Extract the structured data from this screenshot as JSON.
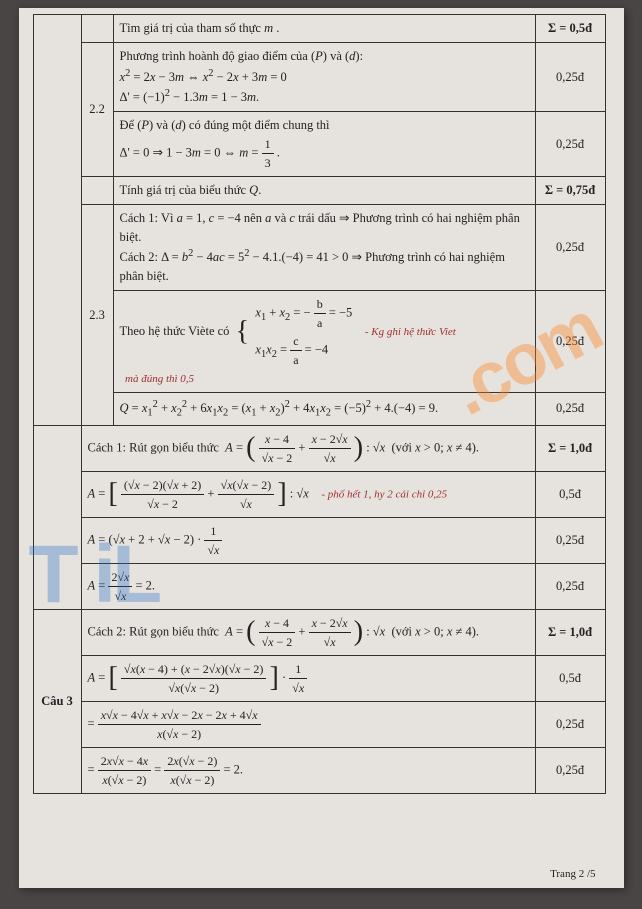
{
  "footer": "Trang 2 /5",
  "rows": [
    {
      "b": "",
      "c": "Tìm giá trị của tham số thực <span class='ital'>m</span> .",
      "d": "Σ = 0,5đ"
    },
    {
      "b": "2.2",
      "c": "Phương trình hoành độ giao điểm của (<span class='ital'>P</span>) và (<span class='ital'>d</span>):<br><span class='ital'>x</span><sup>2</sup> = 2<span class='ital'>x</span> − 3<span class='ital'>m</span> ⇔ <span class='ital'>x</span><sup>2</sup> − 2<span class='ital'>x</span> + 3<span class='ital'>m</span> = 0<br>Δ' = (−1)<sup>2</sup> − 1.3<span class='ital'>m</span> = 1 − 3<span class='ital'>m</span>.",
      "d": "0,25đ"
    },
    {
      "b": "",
      "c": "Để (<span class='ital'>P</span>) và (<span class='ital'>d</span>) có đúng một điểm chung thì<br>Δ' = 0 ⇒ 1 − 3<span class='ital'>m</span> = 0 ⇔ <span class='ital'>m</span> = <span class='frac'><span class='num'>1</span><span class='den'>3</span></span> .",
      "d": "0,25đ"
    },
    {
      "b": "",
      "c": "Tính giá trị của biểu thức <span class='ital'>Q</span>.",
      "d": "Σ = 0,75đ"
    },
    {
      "b": "2.3",
      "c": "Cách 1: Vì <span class='ital'>a</span> = 1, <span class='ital'>c</span> = −4 nên <span class='ital'>a</span> và <span class='ital'>c</span> trái dấu ⇒ Phương trình có hai nghiệm phân biệt.<br>Cách 2: Δ = <span class='ital'>b</span><sup>2</sup> − 4<span class='ital'>ac</span> = 5<sup>2</sup> − 4.1.(−4) = 41 > 0 ⇒ Phương trình có hai nghiệm phân biệt.",
      "d": "0,25đ"
    },
    {
      "b": "",
      "c": "Theo hệ thức Viète có &nbsp;<span class='bigbr'>{</span>&nbsp; <span style='display:inline-block;vertical-align:middle'><span class='ital'>x</span><sub>1</sub> + <span class='ital'>x</span><sub>2</sub> = − <span class='frac'><span class='num'>b</span><span class='den'>a</span></span> = −5<br><span class='ital'>x</span><sub>1</sub><span class='ital'>x</span><sub>2</sub> = <span class='frac'><span class='num'>c</span><span class='den'>a</span></span> = −4</span> &nbsp;&nbsp; <span class='annot'>- Kg ghi hệ thức Viet<br>&nbsp;&nbsp;mà đúng thì 0,5</span>",
      "d": "0,25đ"
    },
    {
      "b": "",
      "c": "<span class='ital'>Q</span> = <span class='ital'>x</span><sub>1</sub><sup>2</sup> + <span class='ital'>x</span><sub>2</sub><sup>2</sup> + 6<span class='ital'>x</span><sub>1</sub><span class='ital'>x</span><sub>2</sub> = (<span class='ital'>x</span><sub>1</sub> + <span class='ital'>x</span><sub>2</sub>)<sup>2</sup> + 4<span class='ital'>x</span><sub>1</sub><span class='ital'>x</span><sub>2</sub> = (−5)<sup>2</sup> + 4.(−4) = 9.",
      "d": "0,25đ"
    },
    {
      "a": "",
      "c": "Cách 1: Rút gọn biểu thức &nbsp;<span class='ital'>A</span> = <span class='bigbr'>(</span> <span class='frac'><span class='num'><span class='ital'>x</span> − 4</span><span class='den'>√<span class='ital'>x</span> − 2</span></span> + <span class='frac'><span class='num'><span class='ital'>x</span> − 2√<span class='ital'>x</span></span><span class='den'>√<span class='ital'>x</span></span></span> <span class='bigbr'>)</span> : √<span class='ital'>x</span> &nbsp;(với <span class='ital'>x</span> > 0; <span class='ital'>x</span> ≠ 4).",
      "d": "Σ = 1,0đ"
    },
    {
      "c": "<span class='ital'>A</span> = <span class='bigbr'>[</span> <span class='frac'><span class='num'>(√<span class='ital'>x</span> − 2)(√<span class='ital'>x</span> + 2)</span><span class='den'>√<span class='ital'>x</span> − 2</span></span> + <span class='frac'><span class='num'>√<span class='ital'>x</span>(√<span class='ital'>x</span> − 2)</span><span class='den'>√<span class='ital'>x</span></span></span> <span class='bigbr'>]</span> : √<span class='ital'>x</span> &nbsp;&nbsp; <span class='annot'>- phố hết 1, hy 2 cái chỉ 0,25</span>",
      "d": "0,5đ"
    },
    {
      "c": "<span class='ital'>A</span> = (√<span class='ital'>x</span> + 2 + √<span class='ital'>x</span> − 2) · <span class='frac'><span class='num'>1</span><span class='den'>√<span class='ital'>x</span></span></span>",
      "d": "0,25đ"
    },
    {
      "c": "<span class='ital'>A</span> = <span class='frac'><span class='num'>2√<span class='ital'>x</span></span><span class='den'>√<span class='ital'>x</span></span></span> = 2.",
      "d": "0,25đ"
    },
    {
      "a": "Câu 3",
      "c": "Cách 2: Rút gọn biểu thức &nbsp;<span class='ital'>A</span> = <span class='bigbr'>(</span> <span class='frac'><span class='num'><span class='ital'>x</span> − 4</span><span class='den'>√<span class='ital'>x</span> − 2</span></span> + <span class='frac'><span class='num'><span class='ital'>x</span> − 2√<span class='ital'>x</span></span><span class='den'>√<span class='ital'>x</span></span></span> <span class='bigbr'>)</span> : √<span class='ital'>x</span> &nbsp;(với <span class='ital'>x</span> > 0; <span class='ital'>x</span> ≠ 4).",
      "d": "Σ = 1,0đ"
    },
    {
      "c": "<span class='ital'>A</span> = <span class='bigbr'>[</span> <span class='frac'><span class='num'>√<span class='ital'>x</span>(<span class='ital'>x</span> − 4) + (<span class='ital'>x</span> − 2√<span class='ital'>x</span>)(√<span class='ital'>x</span> − 2)</span><span class='den'>√<span class='ital'>x</span>(√<span class='ital'>x</span> − 2)</span></span> <span class='bigbr'>]</span> · <span class='frac'><span class='num'>1</span><span class='den'>√<span class='ital'>x</span></span></span>",
      "d": "0,5đ"
    },
    {
      "c": "= <span class='frac'><span class='num'><span class='ital'>x</span>√<span class='ital'>x</span> − 4√<span class='ital'>x</span> + <span class='ital'>x</span>√<span class='ital'>x</span> − 2<span class='ital'>x</span> − 2<span class='ital'>x</span> + 4√<span class='ital'>x</span></span><span class='den'><span class='ital'>x</span>(√<span class='ital'>x</span> − 2)</span></span>",
      "d": "0,25đ"
    },
    {
      "c": "= <span class='frac'><span class='num'>2<span class='ital'>x</span>√<span class='ital'>x</span> − 4<span class='ital'>x</span></span><span class='den'><span class='ital'>x</span>(√<span class='ital'>x</span> − 2)</span></span> = <span class='frac'><span class='num'>2<span class='ital'>x</span>(√<span class='ital'>x</span> − 2)</span><span class='den'><span class='ital'>x</span>(√<span class='ital'>x</span> − 2)</span></span> = 2.",
      "d": "0,25đ"
    }
  ]
}
